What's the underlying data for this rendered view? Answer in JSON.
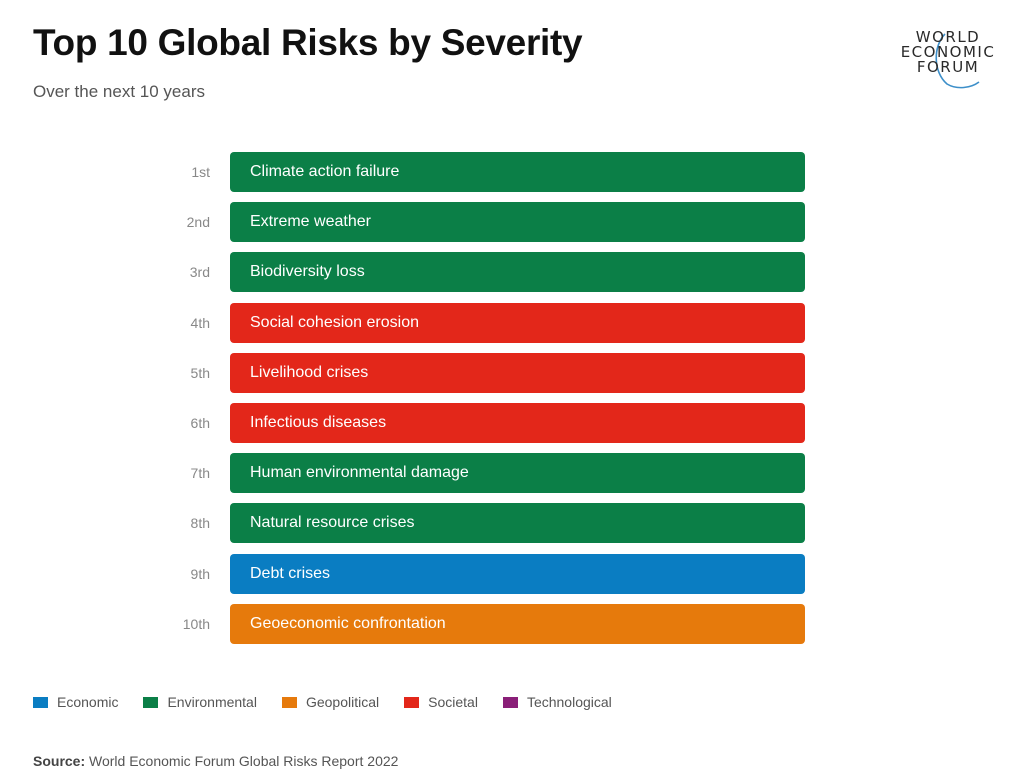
{
  "header": {
    "title": "Top 10 Global Risks by Severity",
    "subtitle": "Over the next 10 years"
  },
  "logo": {
    "lines": [
      "WORLD",
      "ECONOMIC",
      "FORUM"
    ]
  },
  "chart_data": {
    "type": "table",
    "title": "Top 10 Global Risks by Severity",
    "subtitle": "Over the next 10 years",
    "ranks": [
      "1st",
      "2nd",
      "3rd",
      "4th",
      "5th",
      "6th",
      "7th",
      "8th",
      "9th",
      "10th"
    ],
    "risks": [
      {
        "rank": "1st",
        "label": "Climate action failure",
        "category": "Environmental"
      },
      {
        "rank": "2nd",
        "label": "Extreme weather",
        "category": "Environmental"
      },
      {
        "rank": "3rd",
        "label": "Biodiversity loss",
        "category": "Environmental"
      },
      {
        "rank": "4th",
        "label": "Social cohesion erosion",
        "category": "Societal"
      },
      {
        "rank": "5th",
        "label": "Livelihood crises",
        "category": "Societal"
      },
      {
        "rank": "6th",
        "label": "Infectious diseases",
        "category": "Societal"
      },
      {
        "rank": "7th",
        "label": "Human environmental damage",
        "category": "Environmental"
      },
      {
        "rank": "8th",
        "label": "Natural resource crises",
        "category": "Environmental"
      },
      {
        "rank": "9th",
        "label": "Debt crises",
        "category": "Economic"
      },
      {
        "rank": "10th",
        "label": "Geoeconomic confrontation",
        "category": "Geopolitical"
      }
    ],
    "legend": [
      {
        "label": "Economic",
        "color": "#0a7dc2"
      },
      {
        "label": "Environmental",
        "color": "#0b7f47"
      },
      {
        "label": "Geopolitical",
        "color": "#e67a0c"
      },
      {
        "label": "Societal",
        "color": "#e3271a"
      },
      {
        "label": "Technological",
        "color": "#8a1f78"
      }
    ],
    "legend_position": "bottom-left"
  },
  "footer": {
    "source_key": "Source:",
    "source_text": " World Economic Forum Global Risks Report 2022"
  }
}
